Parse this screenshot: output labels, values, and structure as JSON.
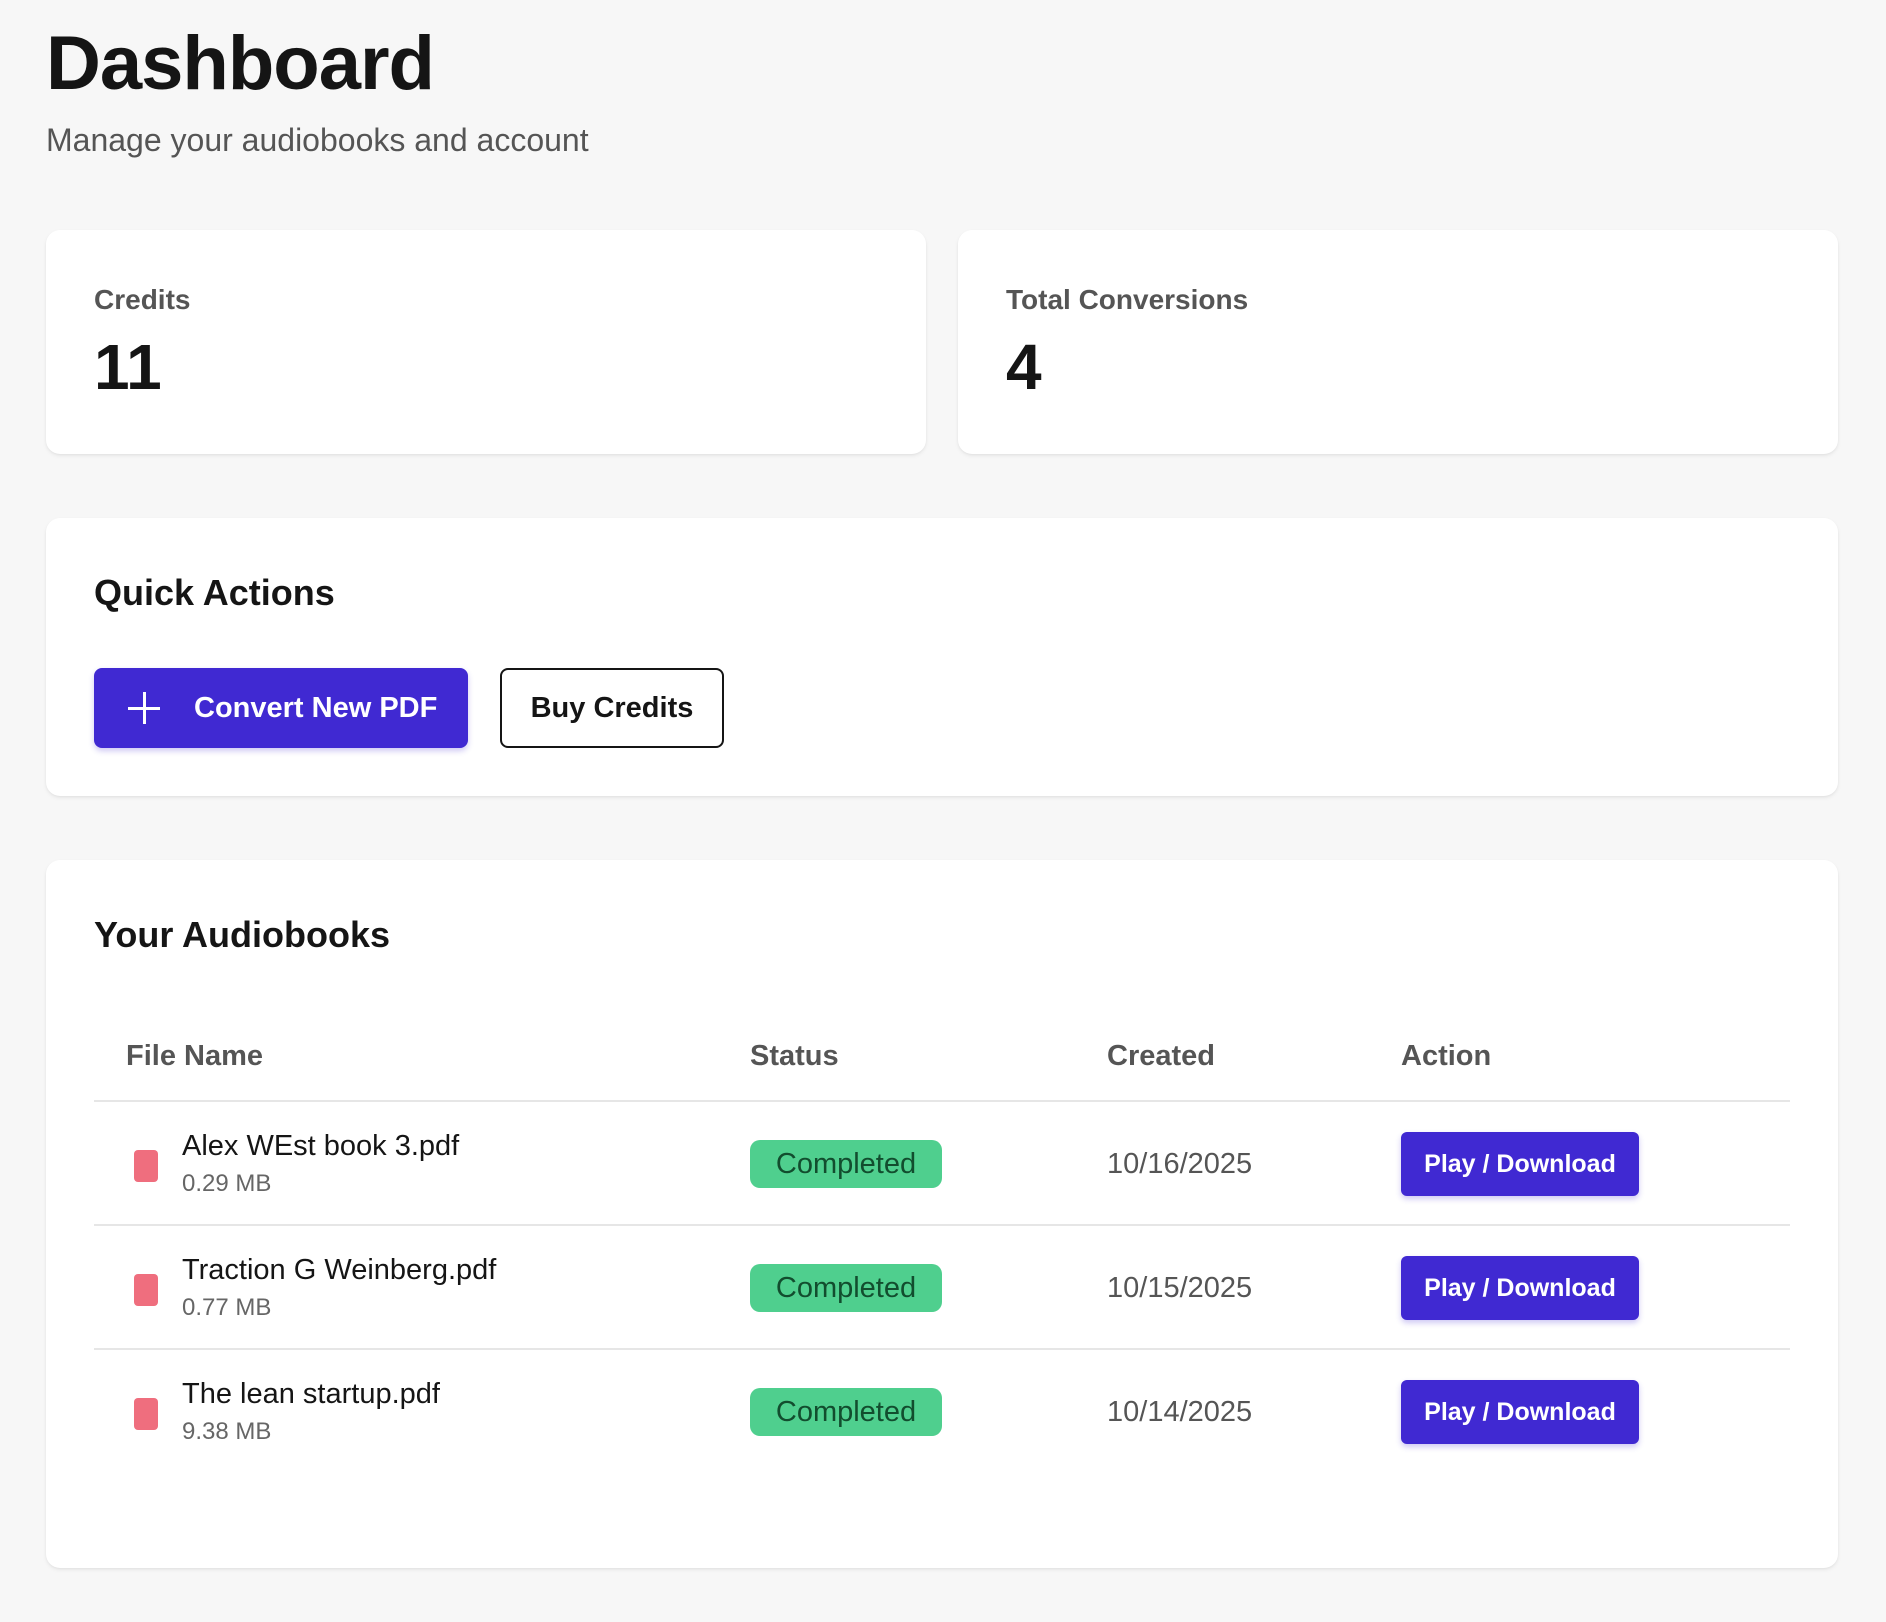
{
  "header": {
    "title": "Dashboard",
    "subtitle": "Manage your audiobooks and account"
  },
  "stats": {
    "credits": {
      "label": "Credits",
      "value": "11"
    },
    "conversions": {
      "label": "Total Conversions",
      "value": "4"
    }
  },
  "quick_actions": {
    "title": "Quick Actions",
    "convert_label": "Convert New PDF",
    "convert_icon": "plus-icon",
    "buy_label": "Buy Credits"
  },
  "audiobooks": {
    "title": "Your Audiobooks",
    "columns": [
      "File Name",
      "Status",
      "Created",
      "Action"
    ],
    "rows": [
      {
        "name": "Alex WEst book 3.pdf",
        "size": "0.29 MB",
        "status": "Completed",
        "created": "10/16/2025",
        "action": "Play / Download"
      },
      {
        "name": "Traction G Weinberg.pdf",
        "size": "0.77 MB",
        "status": "Completed",
        "created": "10/15/2025",
        "action": "Play / Download"
      },
      {
        "name": "The lean startup.pdf",
        "size": "9.38 MB",
        "status": "Completed",
        "created": "10/14/2025",
        "action": "Play / Download"
      }
    ]
  },
  "colors": {
    "accent": "#4029d2",
    "status_completed": "#4fcf8e",
    "file_icon": "#ef6e7e",
    "background": "#f7f7f7"
  }
}
